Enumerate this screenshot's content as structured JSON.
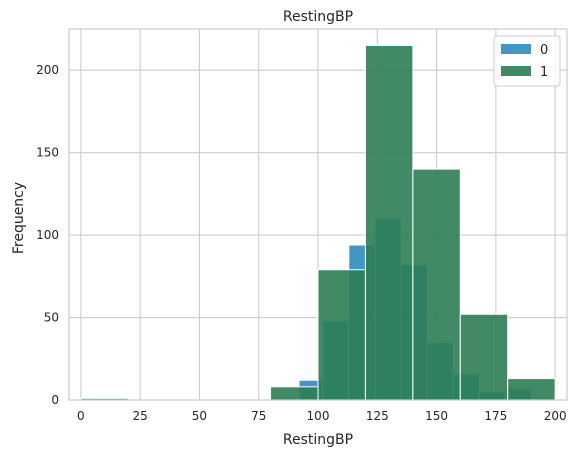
{
  "chart_data": {
    "type": "bar",
    "histogram": true,
    "title": "RestingBP",
    "xlabel": "RestingBP",
    "ylabel": "Frequency",
    "xlim": [
      -5,
      205
    ],
    "ylim": [
      0,
      225
    ],
    "xticks": [
      0,
      25,
      50,
      75,
      100,
      125,
      150,
      175,
      200
    ],
    "yticks": [
      0,
      50,
      100,
      150,
      200
    ],
    "grid": true,
    "legend_position": "top-right",
    "series": [
      {
        "name": "0",
        "color": "#2b8cbe",
        "bins": [
          {
            "x0": 0,
            "x1": 20,
            "value": 1
          },
          {
            "x0": 92,
            "x1": 102,
            "value": 12
          },
          {
            "x0": 102,
            "x1": 113,
            "value": 48
          },
          {
            "x0": 113,
            "x1": 124,
            "value": 94
          },
          {
            "x0": 124,
            "x1": 135,
            "value": 110
          },
          {
            "x0": 135,
            "x1": 146,
            "value": 82
          },
          {
            "x0": 146,
            "x1": 157,
            "value": 35
          },
          {
            "x0": 157,
            "x1": 168,
            "value": 16
          },
          {
            "x0": 168,
            "x1": 179,
            "value": 5
          },
          {
            "x0": 179,
            "x1": 190,
            "value": 7
          }
        ]
      },
      {
        "name": "1",
        "color": "#2e7d55",
        "bins": [
          {
            "x0": 80,
            "x1": 100,
            "value": 8
          },
          {
            "x0": 100,
            "x1": 120,
            "value": 79
          },
          {
            "x0": 120,
            "x1": 140,
            "value": 215
          },
          {
            "x0": 140,
            "x1": 160,
            "value": 140
          },
          {
            "x0": 160,
            "x1": 180,
            "value": 52
          },
          {
            "x0": 180,
            "x1": 200,
            "value": 13
          }
        ]
      }
    ]
  }
}
